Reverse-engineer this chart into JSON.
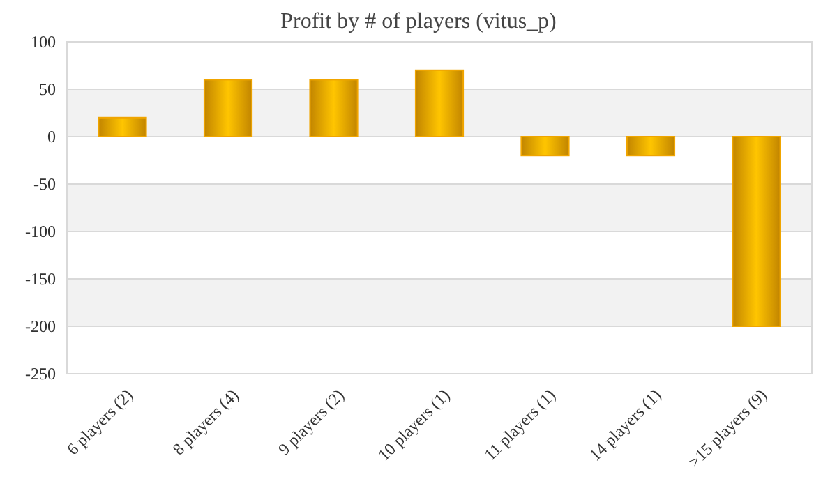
{
  "chart_data": {
    "type": "bar",
    "title": "Profit by # of players  (vitus_p)",
    "categories": [
      "6 players (2)",
      "8 players (4)",
      "9 players (2)",
      "10 players (1)",
      "11 players (1)",
      "14 players (1)",
      ">15 players (9)"
    ],
    "values": [
      20,
      60,
      60,
      70,
      -20,
      -20,
      -200
    ],
    "color": "#f0a500",
    "ylim": [
      -250,
      100
    ],
    "yticks": [
      -250,
      -200,
      -150,
      -100,
      -50,
      0,
      50,
      100
    ],
    "grid": true
  }
}
